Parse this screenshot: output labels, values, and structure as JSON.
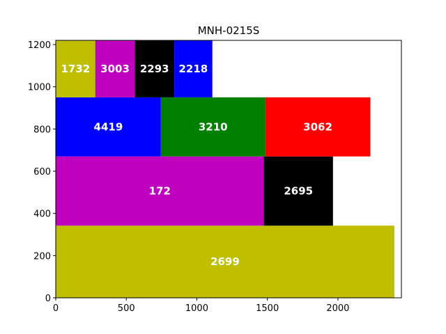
{
  "chart_data": {
    "type": "bar",
    "title": "MNH-0215S",
    "xlabel": "",
    "ylabel": "",
    "xlim": [
      0,
      2450
    ],
    "ylim": [
      0,
      1220
    ],
    "xticks": [
      0,
      500,
      1000,
      1500,
      2000
    ],
    "yticks": [
      0,
      200,
      400,
      600,
      800,
      1000,
      1200
    ],
    "grid": false,
    "rectangles": [
      {
        "label": "2699",
        "x0": 0,
        "x1": 2400,
        "y0": 0,
        "y1": 342,
        "color": "#bfbf00"
      },
      {
        "label": "172",
        "x0": 0,
        "x1": 1475,
        "y0": 342,
        "y1": 670,
        "color": "#bf00bf"
      },
      {
        "label": "2695",
        "x0": 1475,
        "x1": 1965,
        "y0": 342,
        "y1": 670,
        "color": "#000000"
      },
      {
        "label": "4419",
        "x0": 0,
        "x1": 745,
        "y0": 670,
        "y1": 950,
        "color": "#0000ff"
      },
      {
        "label": "3210",
        "x0": 745,
        "x1": 1485,
        "y0": 670,
        "y1": 950,
        "color": "#008000"
      },
      {
        "label": "3062",
        "x0": 1485,
        "x1": 2230,
        "y0": 670,
        "y1": 950,
        "color": "#ff0000"
      },
      {
        "label": "1732",
        "x0": 0,
        "x1": 280,
        "y0": 950,
        "y1": 1220,
        "color": "#bfbf00"
      },
      {
        "label": "3003",
        "x0": 280,
        "x1": 560,
        "y0": 950,
        "y1": 1220,
        "color": "#bf00bf"
      },
      {
        "label": "2293",
        "x0": 560,
        "x1": 840,
        "y0": 950,
        "y1": 1220,
        "color": "#000000"
      },
      {
        "label": "2218",
        "x0": 840,
        "x1": 1110,
        "y0": 950,
        "y1": 1220,
        "color": "#0000ff"
      }
    ]
  }
}
